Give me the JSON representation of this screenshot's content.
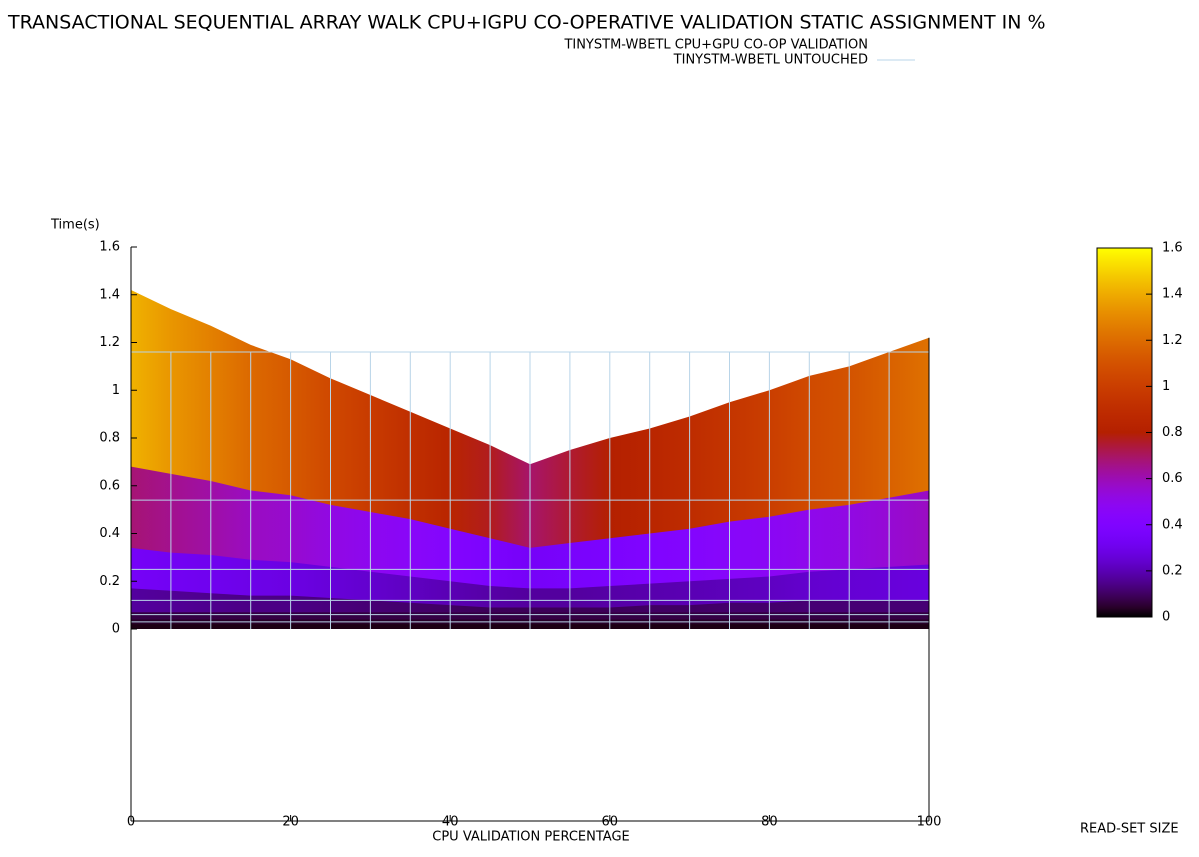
{
  "chart_data": {
    "type": "layered-area",
    "title": "TRANSACTIONAL SEQUENTIAL ARRAY WALK CPU+IGPU CO-OPERATIVE VALIDATION STATIC ASSIGNMENT IN %",
    "x_label": "CPU VALIDATION PERCENTAGE",
    "y_label": "Time(s)",
    "z_label": "READ-SET SIZE",
    "x": [
      0,
      5,
      10,
      15,
      20,
      25,
      30,
      35,
      40,
      45,
      50,
      55,
      60,
      65,
      70,
      75,
      80,
      85,
      90,
      95,
      100
    ],
    "xlim": [
      0,
      100
    ],
    "xticks": [
      0,
      20,
      40,
      60,
      80,
      100
    ],
    "ylim": [
      0,
      1.6
    ],
    "yticks": [
      0,
      0.2,
      0.4,
      0.6,
      0.8,
      1,
      1.2,
      1.4,
      1.6
    ],
    "cblim": [
      0,
      1.6
    ],
    "cbticks": [
      0,
      0.2,
      0.4,
      0.6,
      0.8,
      1,
      1.2,
      1.4,
      1.6
    ],
    "series": [
      {
        "name": "TINYSTM-WBETL CPU+GPU CO-OP VALIDATION",
        "layers": [
          [
            1.42,
            1.34,
            1.27,
            1.19,
            1.13,
            1.05,
            0.98,
            0.91,
            0.84,
            0.77,
            0.69,
            0.75,
            0.8,
            0.84,
            0.89,
            0.95,
            1.0,
            1.06,
            1.1,
            1.16,
            1.22
          ],
          [
            0.68,
            0.65,
            0.62,
            0.58,
            0.56,
            0.52,
            0.49,
            0.46,
            0.42,
            0.38,
            0.34,
            0.36,
            0.38,
            0.4,
            0.42,
            0.45,
            0.47,
            0.5,
            0.52,
            0.55,
            0.58
          ],
          [
            0.34,
            0.32,
            0.31,
            0.29,
            0.28,
            0.26,
            0.24,
            0.22,
            0.2,
            0.18,
            0.17,
            0.17,
            0.18,
            0.19,
            0.2,
            0.21,
            0.22,
            0.24,
            0.25,
            0.26,
            0.27
          ],
          [
            0.17,
            0.16,
            0.15,
            0.14,
            0.14,
            0.13,
            0.12,
            0.11,
            0.1,
            0.09,
            0.09,
            0.09,
            0.09,
            0.1,
            0.1,
            0.11,
            0.11,
            0.12,
            0.12,
            0.12,
            0.12
          ],
          [
            0.07,
            0.07,
            0.07,
            0.07,
            0.07,
            0.07,
            0.07,
            0.07,
            0.07,
            0.07,
            0.07,
            0.07,
            0.07,
            0.07,
            0.07,
            0.07,
            0.07,
            0.07,
            0.07,
            0.07,
            0.07
          ],
          [
            0.04,
            0.04,
            0.04,
            0.04,
            0.04,
            0.04,
            0.04,
            0.04,
            0.04,
            0.04,
            0.04,
            0.04,
            0.04,
            0.04,
            0.04,
            0.04,
            0.04,
            0.04,
            0.04,
            0.04,
            0.04
          ],
          [
            0.02,
            0.02,
            0.02,
            0.02,
            0.02,
            0.02,
            0.02,
            0.02,
            0.02,
            0.02,
            0.02,
            0.02,
            0.02,
            0.02,
            0.02,
            0.02,
            0.02,
            0.02,
            0.02,
            0.02,
            0.02
          ]
        ]
      },
      {
        "name": "TINYSTM-WBETL UNTOUCHED",
        "color": "#b8d4e8",
        "layers": [
          [
            1.16,
            1.16,
            1.16,
            1.16,
            1.16,
            1.16,
            1.16,
            1.16,
            1.16,
            1.16,
            1.16,
            1.16,
            1.16,
            1.16,
            1.16,
            1.16,
            1.16,
            1.16,
            1.16,
            1.16,
            1.16
          ],
          [
            0.54,
            0.54,
            0.54,
            0.54,
            0.54,
            0.54,
            0.54,
            0.54,
            0.54,
            0.54,
            0.54,
            0.54,
            0.54,
            0.54,
            0.54,
            0.54,
            0.54,
            0.54,
            0.54,
            0.54,
            0.54
          ],
          [
            0.25,
            0.25,
            0.25,
            0.25,
            0.25,
            0.25,
            0.25,
            0.25,
            0.25,
            0.25,
            0.25,
            0.25,
            0.25,
            0.25,
            0.25,
            0.25,
            0.25,
            0.25,
            0.25,
            0.25,
            0.25
          ],
          [
            0.12,
            0.12,
            0.12,
            0.12,
            0.12,
            0.12,
            0.12,
            0.12,
            0.12,
            0.12,
            0.12,
            0.12,
            0.12,
            0.12,
            0.12,
            0.12,
            0.12,
            0.12,
            0.12,
            0.12,
            0.12
          ],
          [
            0.06,
            0.06,
            0.06,
            0.06,
            0.06,
            0.06,
            0.06,
            0.06,
            0.06,
            0.06,
            0.06,
            0.06,
            0.06,
            0.06,
            0.06,
            0.06,
            0.06,
            0.06,
            0.06,
            0.06,
            0.06
          ],
          [
            0.03,
            0.03,
            0.03,
            0.03,
            0.03,
            0.03,
            0.03,
            0.03,
            0.03,
            0.03,
            0.03,
            0.03,
            0.03,
            0.03,
            0.03,
            0.03,
            0.03,
            0.03,
            0.03,
            0.03,
            0.03
          ]
        ]
      }
    ]
  }
}
